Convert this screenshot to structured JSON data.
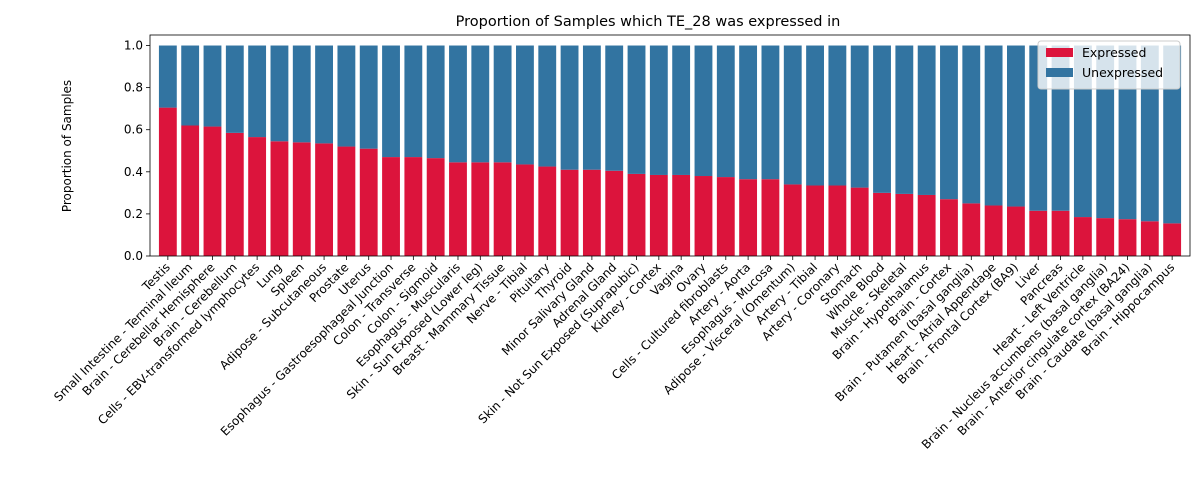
{
  "chart_data": {
    "type": "bar",
    "stacked": true,
    "title": "Proportion of Samples which TE_28 was expressed in",
    "xlabel": "",
    "ylabel": "Proportion of Samples",
    "ylim": [
      0,
      1.05
    ],
    "yticks": [
      0.0,
      0.2,
      0.4,
      0.6,
      0.8,
      1.0
    ],
    "ytick_labels": [
      "0.0",
      "0.2",
      "0.4",
      "0.6",
      "0.8",
      "1.0"
    ],
    "grid": false,
    "legend_position": "top-right",
    "categories": [
      "Testis",
      "Small Intestine - Terminal Ileum",
      "Brain - Cerebellar Hemisphere",
      "Brain - Cerebellum",
      "Cells - EBV-transformed lymphocytes",
      "Lung",
      "Spleen",
      "Adipose - Subcutaneous",
      "Prostate",
      "Uterus",
      "Esophagus - Gastroesophageal Junction",
      "Colon - Transverse",
      "Colon - Sigmoid",
      "Esophagus - Muscularis",
      "Skin - Sun Exposed (Lower leg)",
      "Breast - Mammary Tissue",
      "Nerve - Tibial",
      "Pituitary",
      "Thyroid",
      "Minor Salivary Gland",
      "Adrenal Gland",
      "Skin - Not Sun Exposed (Suprapubic)",
      "Kidney - Cortex",
      "Vagina",
      "Ovary",
      "Cells - Cultured fibroblasts",
      "Artery - Aorta",
      "Esophagus - Mucosa",
      "Adipose - Visceral (Omentum)",
      "Artery - Tibial",
      "Artery - Coronary",
      "Stomach",
      "Whole Blood",
      "Muscle - Skeletal",
      "Brain - Hypothalamus",
      "Brain - Cortex",
      "Brain - Putamen (basal ganglia)",
      "Heart - Atrial Appendage",
      "Brain - Frontal Cortex (BA9)",
      "Liver",
      "Pancreas",
      "Heart - Left Ventricle",
      "Brain - Nucleus accumbens (basal ganglia)",
      "Brain - Anterior cingulate cortex (BA24)",
      "Brain - Caudate (basal ganglia)",
      "Brain - Hippocampus"
    ],
    "series": [
      {
        "name": "Expressed",
        "color": "#dc143c",
        "values": [
          0.705,
          0.62,
          0.615,
          0.585,
          0.565,
          0.545,
          0.54,
          0.535,
          0.52,
          0.51,
          0.47,
          0.47,
          0.465,
          0.445,
          0.445,
          0.445,
          0.435,
          0.425,
          0.41,
          0.41,
          0.405,
          0.39,
          0.385,
          0.385,
          0.38,
          0.375,
          0.365,
          0.365,
          0.34,
          0.335,
          0.335,
          0.325,
          0.3,
          0.295,
          0.29,
          0.27,
          0.25,
          0.24,
          0.235,
          0.215,
          0.215,
          0.185,
          0.18,
          0.175,
          0.165,
          0.155
        ]
      },
      {
        "name": "Unexpressed",
        "color": "#3274a1",
        "values": [
          0.295,
          0.38,
          0.385,
          0.415,
          0.435,
          0.455,
          0.46,
          0.465,
          0.48,
          0.49,
          0.53,
          0.53,
          0.535,
          0.555,
          0.555,
          0.555,
          0.565,
          0.575,
          0.59,
          0.59,
          0.595,
          0.61,
          0.615,
          0.615,
          0.62,
          0.625,
          0.635,
          0.635,
          0.66,
          0.665,
          0.665,
          0.675,
          0.7,
          0.705,
          0.71,
          0.73,
          0.75,
          0.76,
          0.765,
          0.785,
          0.785,
          0.815,
          0.82,
          0.825,
          0.835,
          0.845
        ]
      }
    ]
  }
}
